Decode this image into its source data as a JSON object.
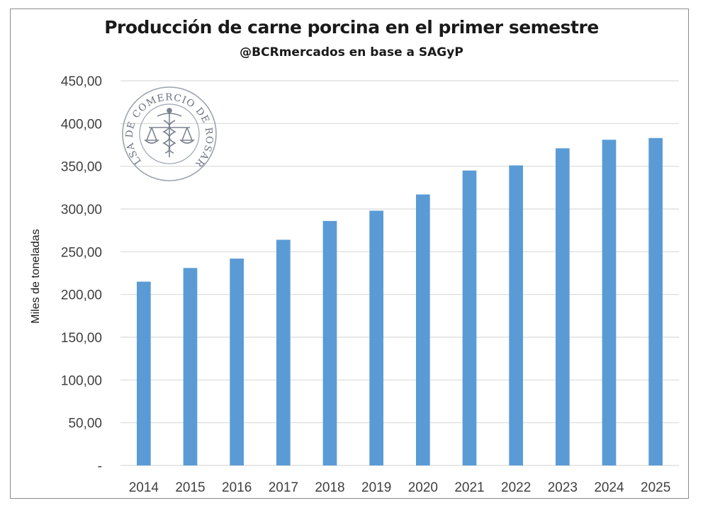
{
  "chart_data": {
    "type": "bar",
    "title": "Producción de carne porcina en el primer semestre",
    "subtitle": "@BCRmercados en base a SAGyP",
    "xlabel": "",
    "ylabel": "Miles de toneladas",
    "categories": [
      "2014",
      "2015",
      "2016",
      "2017",
      "2018",
      "2019",
      "2020",
      "2021",
      "2022",
      "2023",
      "2024",
      "2025"
    ],
    "series": [
      {
        "name": "Producción",
        "values": [
          215,
          231,
          242,
          264,
          286,
          298,
          317,
          345,
          351,
          371,
          381,
          383
        ]
      }
    ],
    "ylim": [
      0,
      450
    ],
    "yticks": [
      0,
      50,
      100,
      150,
      200,
      250,
      300,
      350,
      400,
      450
    ],
    "ytick_labels": [
      "-",
      "50,00",
      "100,00",
      "150,00",
      "200,00",
      "250,00",
      "300,00",
      "350,00",
      "400,00",
      "450,00"
    ],
    "grid": true,
    "legend": "none",
    "bar_color": "#5b9bd5",
    "grid_color": "#d9d9d9"
  },
  "watermark": {
    "text": "BOLSA DE COMERCIO DE ROSARIO"
  }
}
